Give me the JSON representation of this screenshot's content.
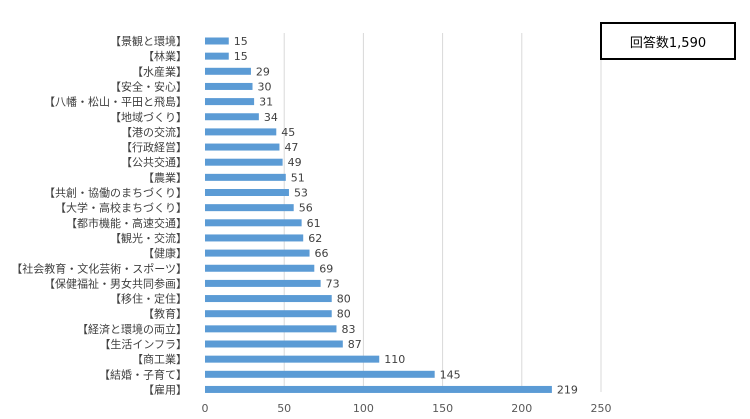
{
  "response_count_label": "回答数1,590",
  "chart_data": {
    "type": "bar",
    "orientation": "horizontal",
    "categories": [
      "【景観と環境】",
      "【林業】",
      "【水産業】",
      "【安全・安心】",
      "【八幡・松山・平田と飛島】",
      "【地域づくり】",
      "【港の交流】",
      "【行政経営】",
      "【公共交通】",
      "【農業】",
      "【共創・協働のまちづくり】",
      "【大学・高校まちづくり】",
      "【都市機能・高速交通】",
      "【観光・交流】",
      "【健康】",
      "【社会教育・文化芸術・スポーツ】",
      "【保健福祉・男女共同参画】",
      "【移住・定住】",
      "【教育】",
      "【経済と環境の両立】",
      "【生活インフラ】",
      "【商工業】",
      "【結婚・子育て】",
      "【雇用】"
    ],
    "values": [
      15,
      15,
      29,
      30,
      31,
      34,
      45,
      47,
      49,
      51,
      53,
      56,
      61,
      62,
      66,
      69,
      73,
      80,
      80,
      83,
      87,
      110,
      145,
      219
    ],
    "xlim": [
      0,
      250
    ],
    "xticks": [
      0,
      50,
      100,
      150,
      200,
      250
    ],
    "grid": true,
    "bar_color": "#5b9bd5"
  }
}
